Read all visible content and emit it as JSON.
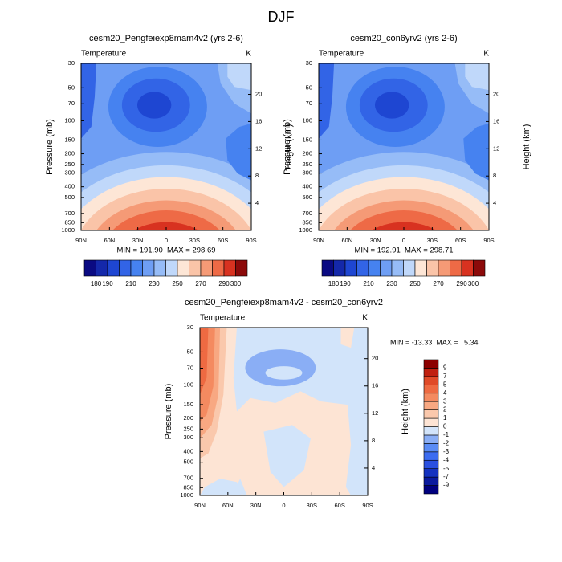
{
  "title": "DJF",
  "chart_data": [
    {
      "type": "contour",
      "title": "cesm20_Pengfeiexp8mam4v2 (yrs 2-6)",
      "left_label": "Temperature",
      "right_label": "K",
      "ylabel": "Pressure (mb)",
      "y2label": "Height (km)",
      "stats": "MIN = 191.90  MAX = 298.69",
      "xlim": [
        90,
        -90
      ],
      "xticks": [
        {
          "value": 90,
          "label": "90N"
        },
        {
          "value": 60,
          "label": "60N"
        },
        {
          "value": 30,
          "label": "30N"
        },
        0,
        {
          "value": -30,
          "label": "30S"
        },
        {
          "value": -60,
          "label": "60S"
        },
        {
          "value": -90,
          "label": "90S"
        }
      ],
      "ylim": [
        1000,
        30
      ],
      "ylog": true,
      "yticks": [
        30,
        50,
        70,
        100,
        150,
        200,
        250,
        300,
        400,
        500,
        700,
        850,
        1000
      ],
      "y2ticks": [
        4,
        8,
        12,
        16,
        20
      ],
      "colorbar": {
        "orientation": "horizontal",
        "levels": [
          180,
          190,
          200,
          210,
          220,
          230,
          240,
          250,
          260,
          270,
          280,
          290,
          300
        ],
        "colors": [
          "#0a0a82",
          "#1428aa",
          "#1e46d2",
          "#3264e6",
          "#4682f0",
          "#6e9ef4",
          "#96bcf7",
          "#c0d8fa",
          "#fde6d6",
          "#fac4a8",
          "#f59a76",
          "#ee6a46",
          "#d83220",
          "#8c0a0a"
        ],
        "ticks": [
          180,
          190,
          210,
          230,
          250,
          270,
          290,
          300
        ]
      }
    },
    {
      "type": "contour",
      "title": "cesm20_con6yrv2 (yrs 2-6)",
      "left_label": "Temperature",
      "right_label": "K",
      "ylabel": "Pressure (mb)",
      "y2label": "Height (km)",
      "stats": "MIN = 192.91  MAX = 298.71",
      "xlim": [
        90,
        -90
      ],
      "xticks": [
        {
          "value": 90,
          "label": "90N"
        },
        {
          "value": 60,
          "label": "60N"
        },
        {
          "value": 30,
          "label": "30N"
        },
        0,
        {
          "value": -30,
          "label": "30S"
        },
        {
          "value": -60,
          "label": "60S"
        },
        {
          "value": -90,
          "label": "90S"
        }
      ],
      "ylim": [
        1000,
        30
      ],
      "ylog": true,
      "yticks": [
        30,
        50,
        70,
        100,
        150,
        200,
        250,
        300,
        400,
        500,
        700,
        850,
        1000
      ],
      "y2ticks": [
        4,
        8,
        12,
        16,
        20
      ],
      "colorbar": {
        "orientation": "horizontal",
        "levels": [
          180,
          190,
          200,
          210,
          220,
          230,
          240,
          250,
          260,
          270,
          280,
          290,
          300
        ],
        "colors": [
          "#0a0a82",
          "#1428aa",
          "#1e46d2",
          "#3264e6",
          "#4682f0",
          "#6e9ef4",
          "#96bcf7",
          "#c0d8fa",
          "#fde6d6",
          "#fac4a8",
          "#f59a76",
          "#ee6a46",
          "#d83220",
          "#8c0a0a"
        ],
        "ticks": [
          180,
          190,
          210,
          230,
          250,
          270,
          290,
          300
        ]
      }
    },
    {
      "type": "contour",
      "title": "cesm20_Pengfeiexp8mam4v2 - cesm20_con6yrv2",
      "left_label": "Temperature",
      "right_label": "K",
      "ylabel": "Pressure (mb)",
      "y2label": "Height (km)",
      "stats": "MIN = -13.33  MAX =   5.34",
      "xlim": [
        90,
        -90
      ],
      "xticks": [
        {
          "value": 90,
          "label": "90N"
        },
        {
          "value": 60,
          "label": "60N"
        },
        {
          "value": 30,
          "label": "30N"
        },
        0,
        {
          "value": -30,
          "label": "30S"
        },
        {
          "value": -60,
          "label": "60S"
        },
        {
          "value": -90,
          "label": "90S"
        }
      ],
      "ylim": [
        1000,
        30
      ],
      "ylog": true,
      "yticks": [
        30,
        50,
        70,
        100,
        150,
        200,
        250,
        300,
        400,
        500,
        700,
        850,
        1000
      ],
      "y2ticks": [
        4,
        8,
        12,
        16,
        20
      ],
      "colorbar": {
        "orientation": "vertical",
        "levels": [
          -9,
          -7,
          -5,
          -4,
          -3,
          -2,
          -1,
          0,
          1,
          2,
          3,
          4,
          5,
          7,
          9
        ],
        "colors": [
          "#00007f",
          "#0a1a9e",
          "#1432c0",
          "#2a50e0",
          "#3c6cf0",
          "#5a8cf5",
          "#8aaef5",
          "#d2e4fa",
          "#fde4d4",
          "#fac8ac",
          "#f8a882",
          "#f48a60",
          "#ee6a42",
          "#e04a28",
          "#c02010",
          "#8c0000"
        ],
        "ticks": [
          -9,
          -7,
          -5,
          -4,
          -3,
          -2,
          -1,
          0,
          1,
          2,
          3,
          4,
          5,
          7,
          9
        ]
      }
    }
  ]
}
